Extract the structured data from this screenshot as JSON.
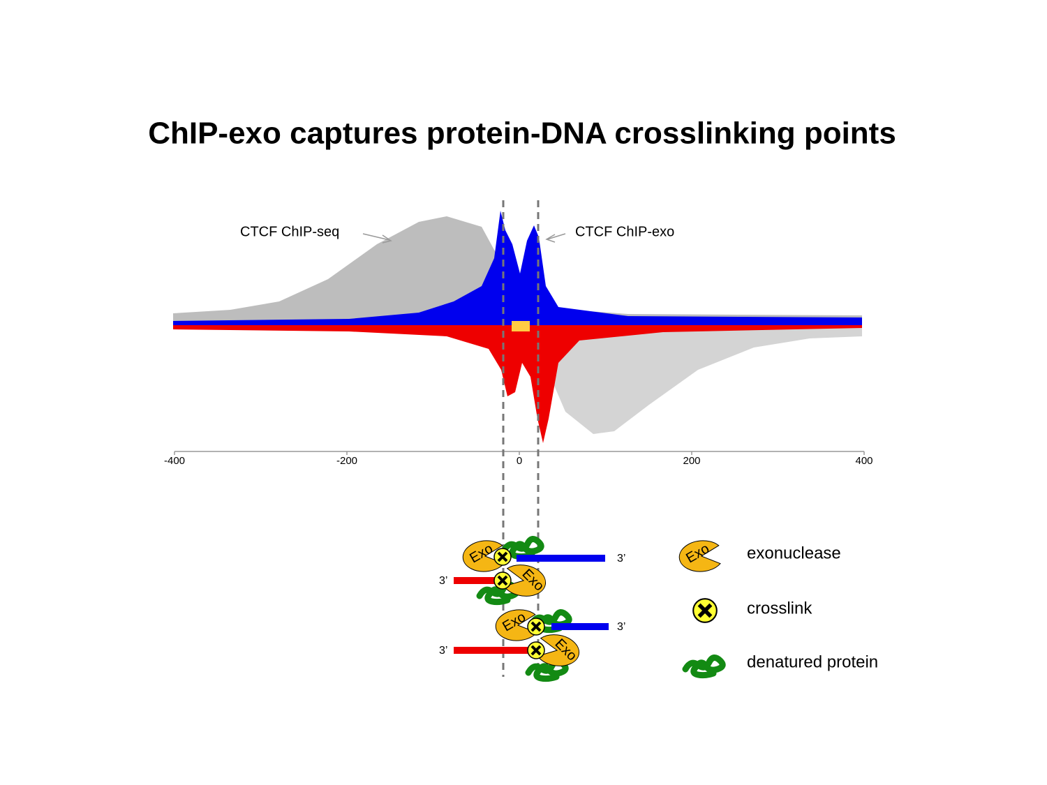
{
  "title": "ChIP-exo captures protein-DNA crosslinking points",
  "plot": {
    "annotations": [
      "CTCF ChIP-seq",
      "CTCF ChIP-exo"
    ],
    "xlim": [
      -400,
      400
    ],
    "xticks": [
      -400,
      -200,
      0,
      200,
      400
    ]
  },
  "diagram": {
    "exo_labels": [
      "Exo",
      "Exo",
      "Exo",
      "Exo"
    ],
    "strand_ends": [
      "3’",
      "3’",
      "3’",
      "3’"
    ]
  },
  "legend": [
    {
      "icon": "Exo",
      "label": "exonuclease"
    },
    {
      "label": "crosslink"
    },
    {
      "label": "denatured protein"
    }
  ]
}
